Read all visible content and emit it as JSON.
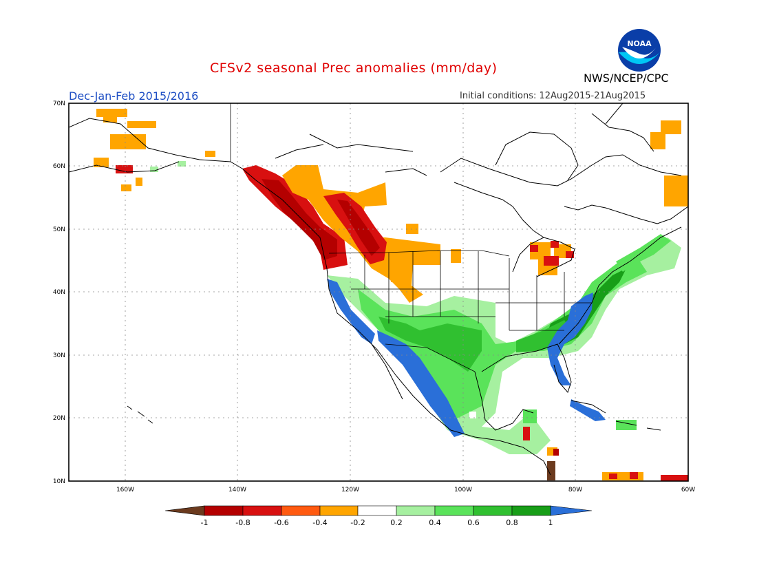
{
  "header": {
    "title": "CFSv2 seasonal Prec anomalies (mm/day)",
    "period": "Dec-Jan-Feb 2015/2016",
    "init": "Initial conditions: 12Aug2015-21Aug2015",
    "agency": "NWS/NCEP/CPC",
    "logo_text": "NOAA"
  },
  "map": {
    "lat_ticks": [
      "70N",
      "60N",
      "50N",
      "40N",
      "30N",
      "20N",
      "10N"
    ],
    "lon_ticks": [
      "160W",
      "140W",
      "120W",
      "100W",
      "80W",
      "60W"
    ],
    "extent": {
      "lon": [
        -171,
        -60
      ],
      "lat": [
        10,
        70
      ]
    }
  },
  "colorbar": {
    "labels": [
      "-1",
      "-0.8",
      "-0.6",
      "-0.4",
      "-0.2",
      "0.2",
      "0.4",
      "0.6",
      "0.8",
      "1"
    ],
    "colors": [
      "#6b3a1e",
      "#b40000",
      "#d81010",
      "#ff5a10",
      "#ffa500",
      "#ffffff",
      "#a6f0a0",
      "#5ae35a",
      "#30c030",
      "#189e18",
      "#2a6fd8"
    ]
  }
}
